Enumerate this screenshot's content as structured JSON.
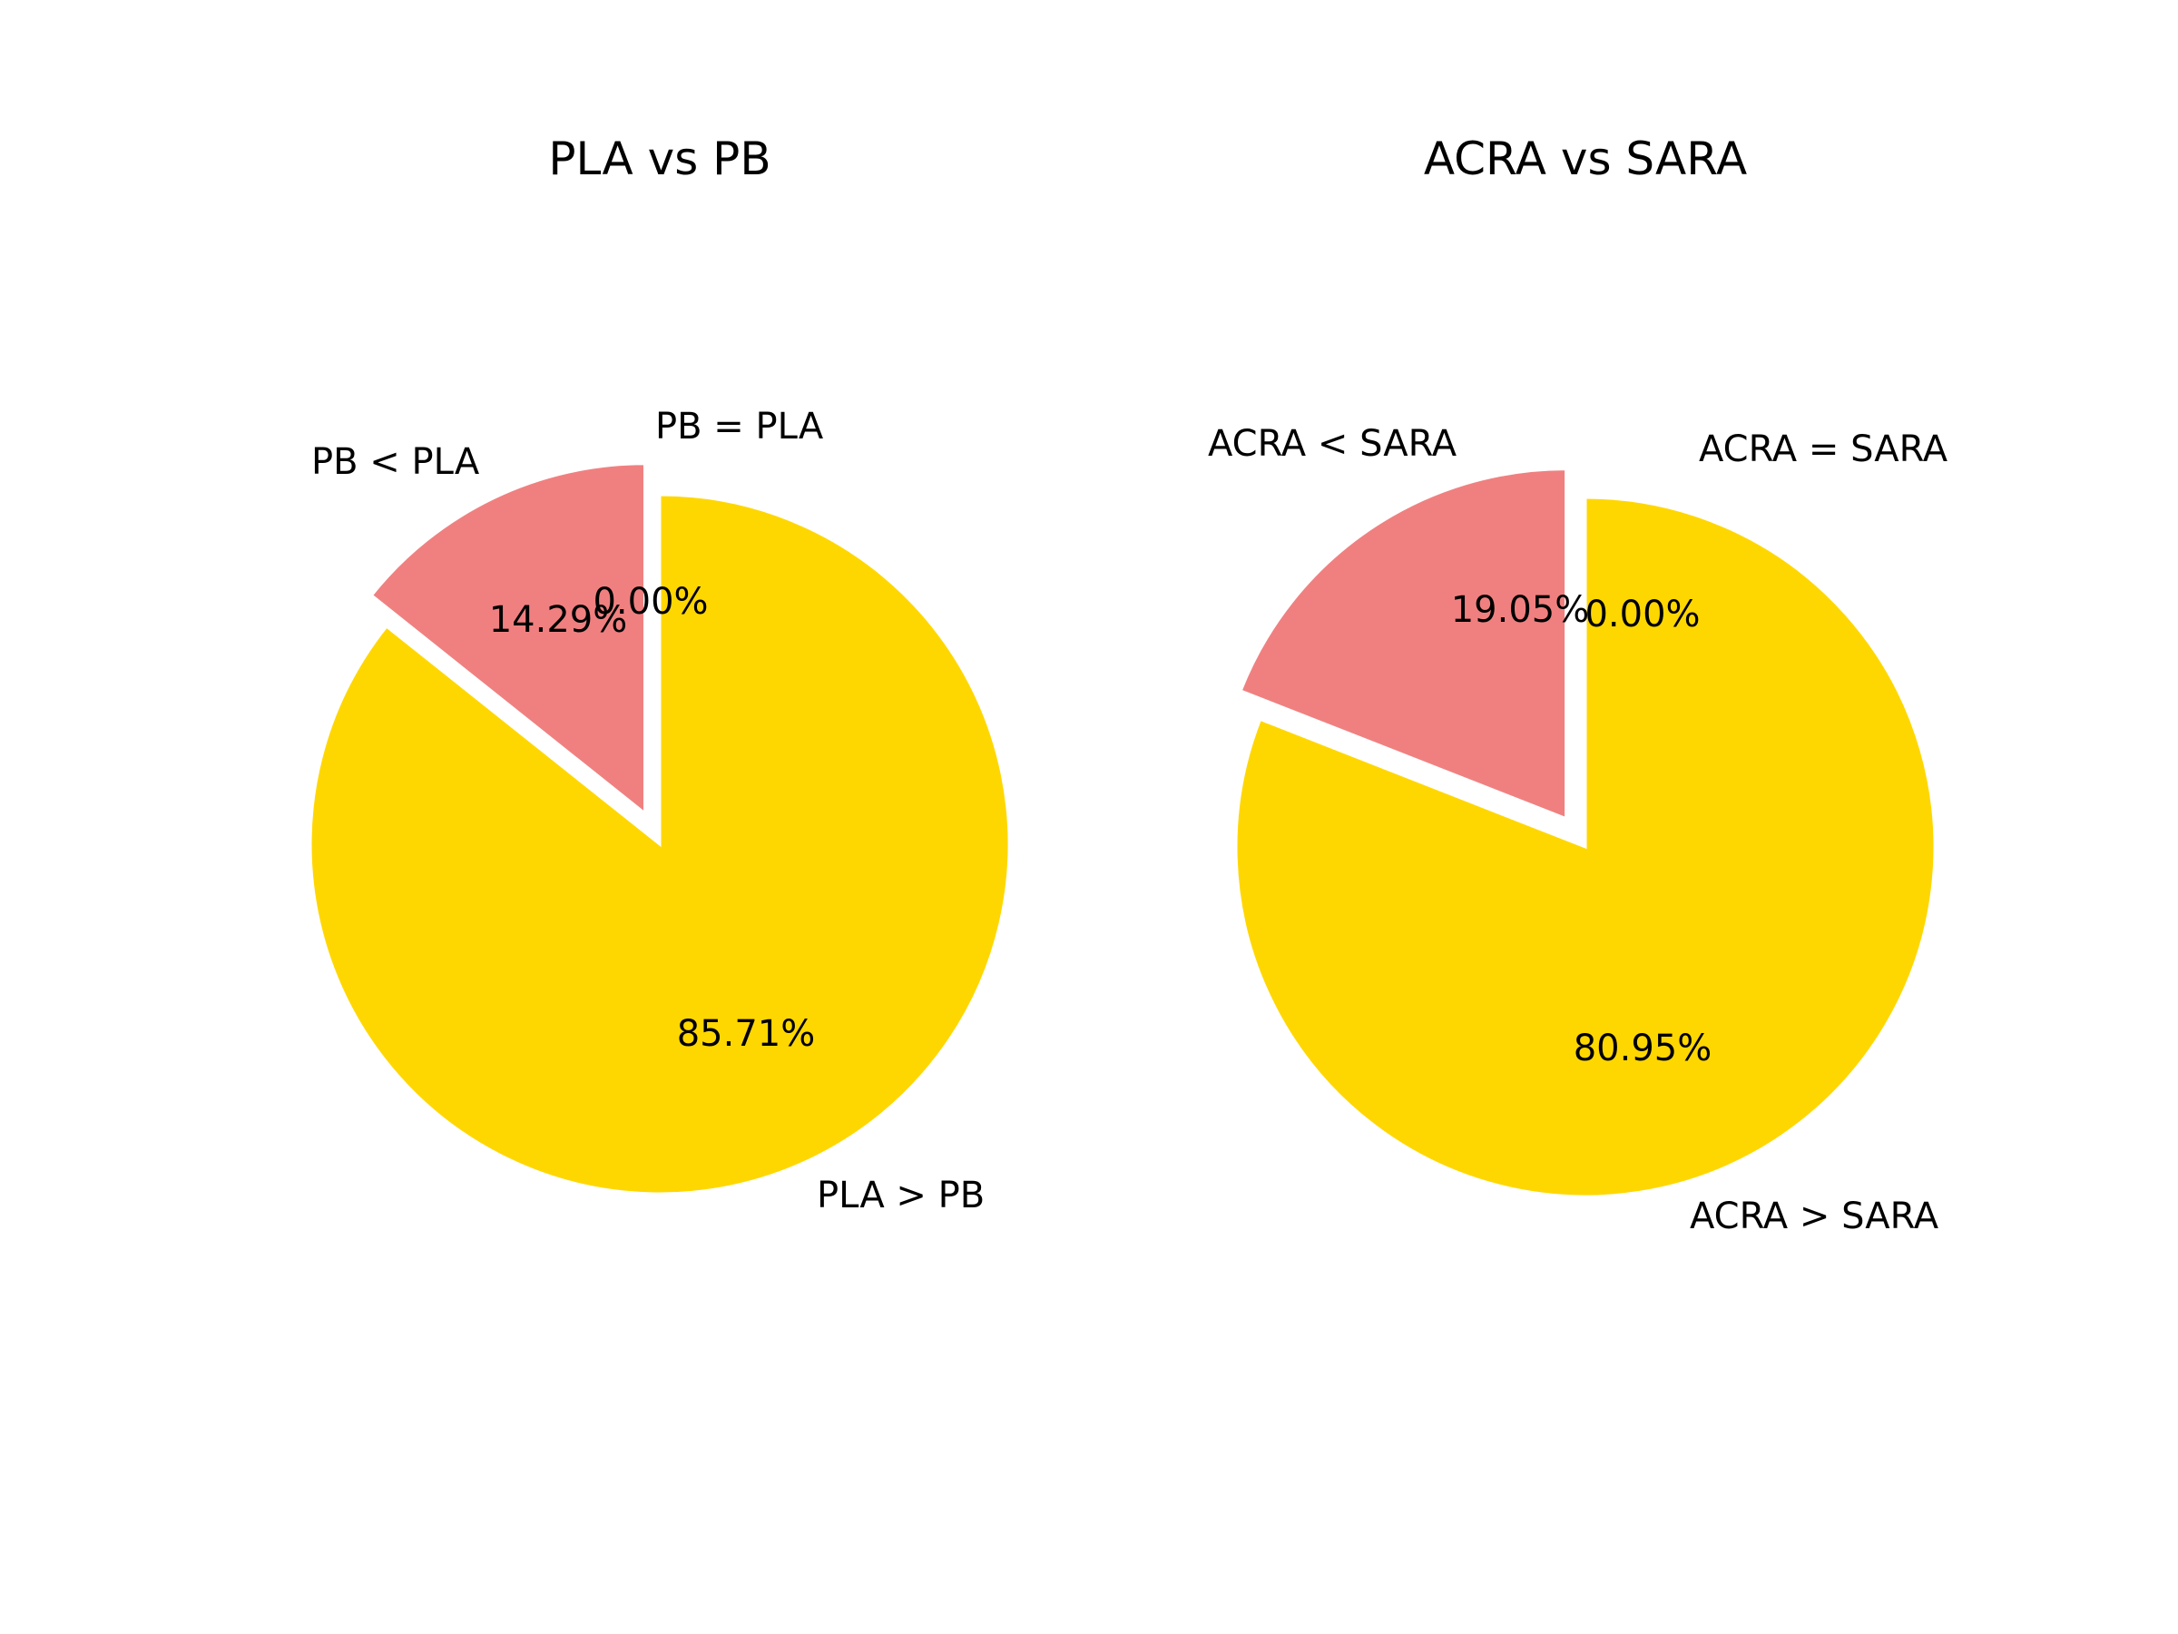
{
  "chart_data": [
    {
      "type": "pie",
      "title": "PLA vs PB",
      "categories": [
        "PB < PLA",
        "PB = PLA",
        "PLA > PB"
      ],
      "values": [
        14.29,
        0.0,
        85.71
      ],
      "value_labels": [
        "14.29%",
        "0.00%",
        "85.71%"
      ],
      "colors": [
        "#F08080",
        "#F08080",
        "#FFD700"
      ],
      "exploded": [
        true,
        true,
        false
      ],
      "legend": "none"
    },
    {
      "type": "pie",
      "title": "ACRA vs SARA",
      "categories": [
        "ACRA < SARA",
        "ACRA = SARA",
        "ACRA > SARA"
      ],
      "values": [
        19.05,
        0.0,
        80.95
      ],
      "value_labels": [
        "19.05%",
        "0.00%",
        "80.95%"
      ],
      "colors": [
        "#F08080",
        "#F08080",
        "#FFD700"
      ],
      "exploded": [
        true,
        true,
        false
      ],
      "legend": "none"
    }
  ]
}
